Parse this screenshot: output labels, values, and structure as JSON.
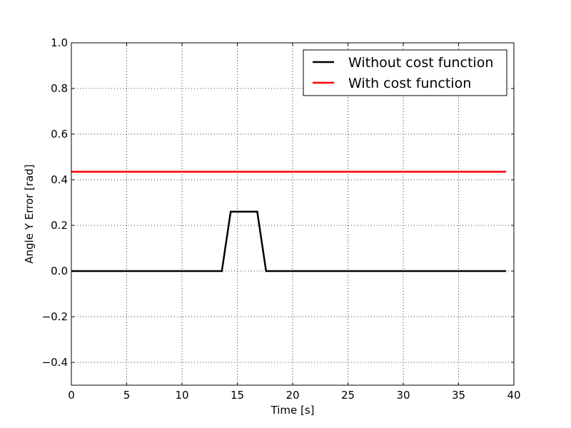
{
  "chart_data": {
    "type": "line",
    "title": "",
    "xlabel": "Time [s]",
    "ylabel": "Angle Y Error [rad]",
    "xlim": [
      0,
      40
    ],
    "ylim": [
      -0.5,
      1.0
    ],
    "grid": true,
    "legend_position": "top-right",
    "xticks": [
      0,
      5,
      10,
      15,
      20,
      25,
      30,
      35,
      40
    ],
    "yticks": [
      -0.4,
      -0.2,
      0.0,
      0.2,
      0.4,
      0.6,
      0.8,
      1.0
    ],
    "xtick_labels": [
      "0",
      "5",
      "10",
      "15",
      "20",
      "25",
      "30",
      "35",
      "40"
    ],
    "ytick_labels": [
      "−0.4",
      "−0.2",
      "0.0",
      "0.2",
      "0.4",
      "0.6",
      "0.8",
      "1.0"
    ],
    "series": [
      {
        "name": "Without cost function",
        "color": "#000000",
        "x": [
          0,
          13.6,
          14.4,
          16.8,
          17.6,
          39.3
        ],
        "y": [
          0.0,
          0.0,
          0.26,
          0.26,
          0.0,
          0.0
        ]
      },
      {
        "name": "With cost function",
        "color": "#ff0000",
        "x": [
          0,
          39.3
        ],
        "y": [
          0.435,
          0.435
        ]
      }
    ]
  }
}
